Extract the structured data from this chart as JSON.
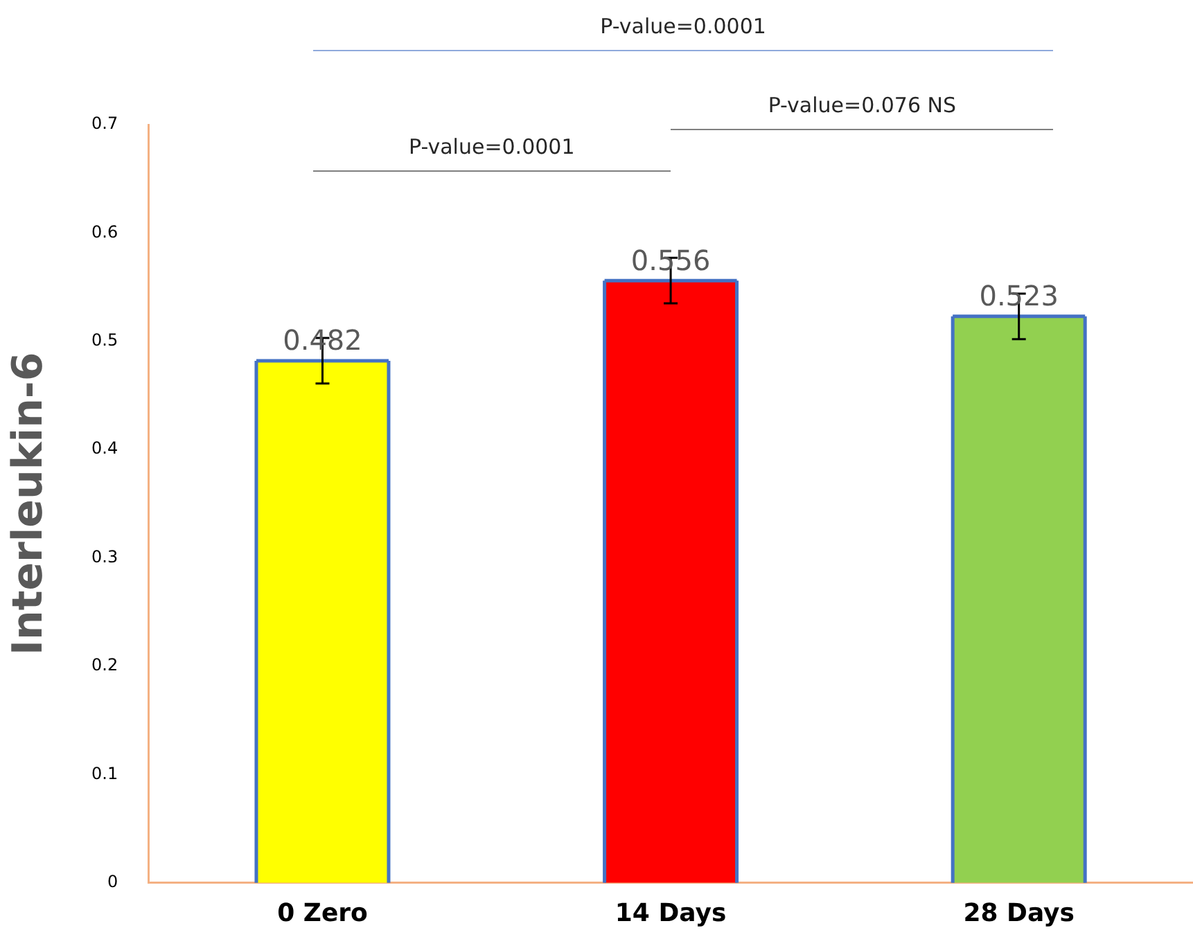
{
  "chart_data": {
    "type": "bar",
    "ylabel": "Interleukin-6",
    "categories": [
      "0 Zero",
      "14 Days",
      "28 Days"
    ],
    "values": [
      0.482,
      0.556,
      0.523
    ],
    "colors": [
      "#ffff00",
      "#ff0000",
      "#92d050"
    ],
    "errors": [
      0.021,
      0.021,
      0.021
    ],
    "data_labels": true,
    "ylim": [
      0,
      0.7
    ],
    "yticks": [
      0,
      0.1,
      0.2,
      0.3,
      0.4,
      0.5,
      0.6,
      0.7
    ],
    "grid": false,
    "legend": false,
    "annotations": [
      "P-value=0.0001",
      "P-value=0.0001",
      "P-value=0.076 NS"
    ]
  }
}
